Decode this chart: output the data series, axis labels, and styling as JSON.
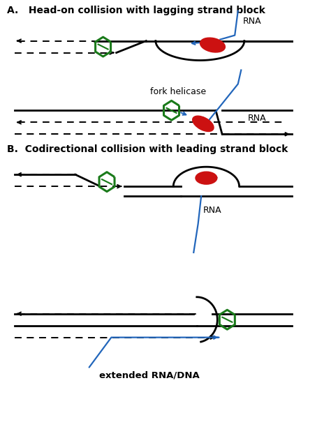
{
  "title_A": "A.   Head-on collision with lagging strand block",
  "title_B": "B.  Codirectional collision with leading strand block",
  "label_fork_helicase": "fork helicase",
  "label_RNA_A1": "RNA",
  "label_RNA_A2": "RNA",
  "label_RNA_B1": "RNA",
  "label_ext": "extended RNA/DNA",
  "bg_color": "#ffffff",
  "line_color": "#000000",
  "blue_color": "#2266bb",
  "green_color": "#1a7a1a",
  "red_color": "#cc1111"
}
